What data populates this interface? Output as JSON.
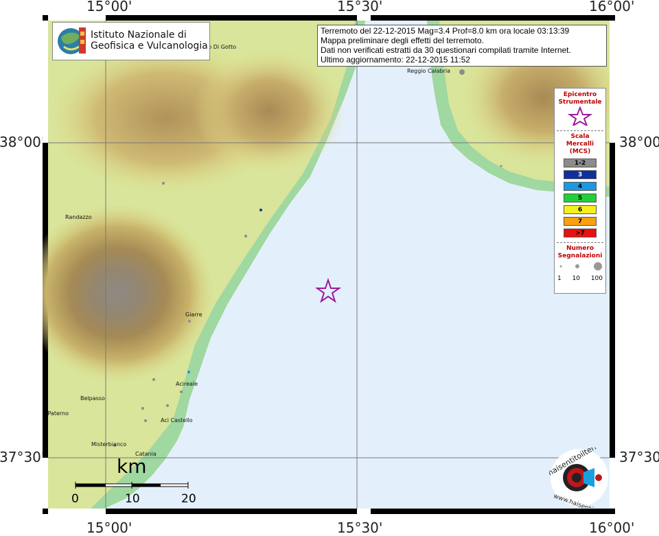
{
  "axes": {
    "top_longitudes": [
      "15°00'",
      "15°30'",
      "16°00'"
    ],
    "bottom_longitudes": [
      "15°00'",
      "15°30'",
      "16°00'"
    ],
    "left_latitudes": [
      "38°00'",
      "37°30'"
    ],
    "right_latitudes": [
      "38°00'",
      "37°30'"
    ]
  },
  "logo": {
    "line1": "Istituto Nazionale di",
    "line2": "Geofisica e Vulcanologia"
  },
  "info": {
    "line1": "Terremoto del 22-12-2015 Mag=3.4 Prof=8.0 km ora locale 03:13:39",
    "line2": "Mappa preliminare degli effetti del terremoto.",
    "line3": "Dati non verificati estratti da 30 questionari compilati tramite Internet.",
    "line4": "Ultimo aggiornamento: 22-12-2015 11:52"
  },
  "legend": {
    "epicenter_title_1": "Epicentro",
    "epicenter_title_2": "Strumentale",
    "scale_title_1": "Scala",
    "scale_title_2": "Mercalli",
    "scale_title_3": "(MCS)",
    "mcs_classes": [
      {
        "label": "1-2",
        "color": "#8c8c8c"
      },
      {
        "label": "3",
        "color": "#1030a0"
      },
      {
        "label": "4",
        "color": "#1a9ae0"
      },
      {
        "label": "5",
        "color": "#22d03a"
      },
      {
        "label": "6",
        "color": "#f4f020"
      },
      {
        "label": "7",
        "color": "#f8a010"
      },
      {
        "label": ">7",
        "color": "#e81010"
      }
    ],
    "count_title_1": "Numero",
    "count_title_2": "Segnalazioni",
    "count_labels": [
      "1",
      "10",
      "100"
    ]
  },
  "places": {
    "gotto": "Barcellona Pozzo Di Gotto",
    "reggio": "Reggio Calabria",
    "randazzo": "Randazzo",
    "giarre": "Giarre",
    "acireale": "Acireale",
    "belpasso": "Belpasso",
    "paterno": "Paterno'",
    "acicastello": "Aci Castello",
    "misterbianco": "Misterbianco",
    "catania": "Catania"
  },
  "scale_bar": {
    "unit": "km",
    "ticks": [
      "0",
      "10",
      "20"
    ]
  },
  "brand": {
    "name": "haisentitoilterremoto.it",
    "url": "www.haisentitoilterremoto.it"
  },
  "colors": {
    "sea": "#e3f0fb",
    "epicenter": "#9b1b9b",
    "legend_title": "#c00000"
  }
}
